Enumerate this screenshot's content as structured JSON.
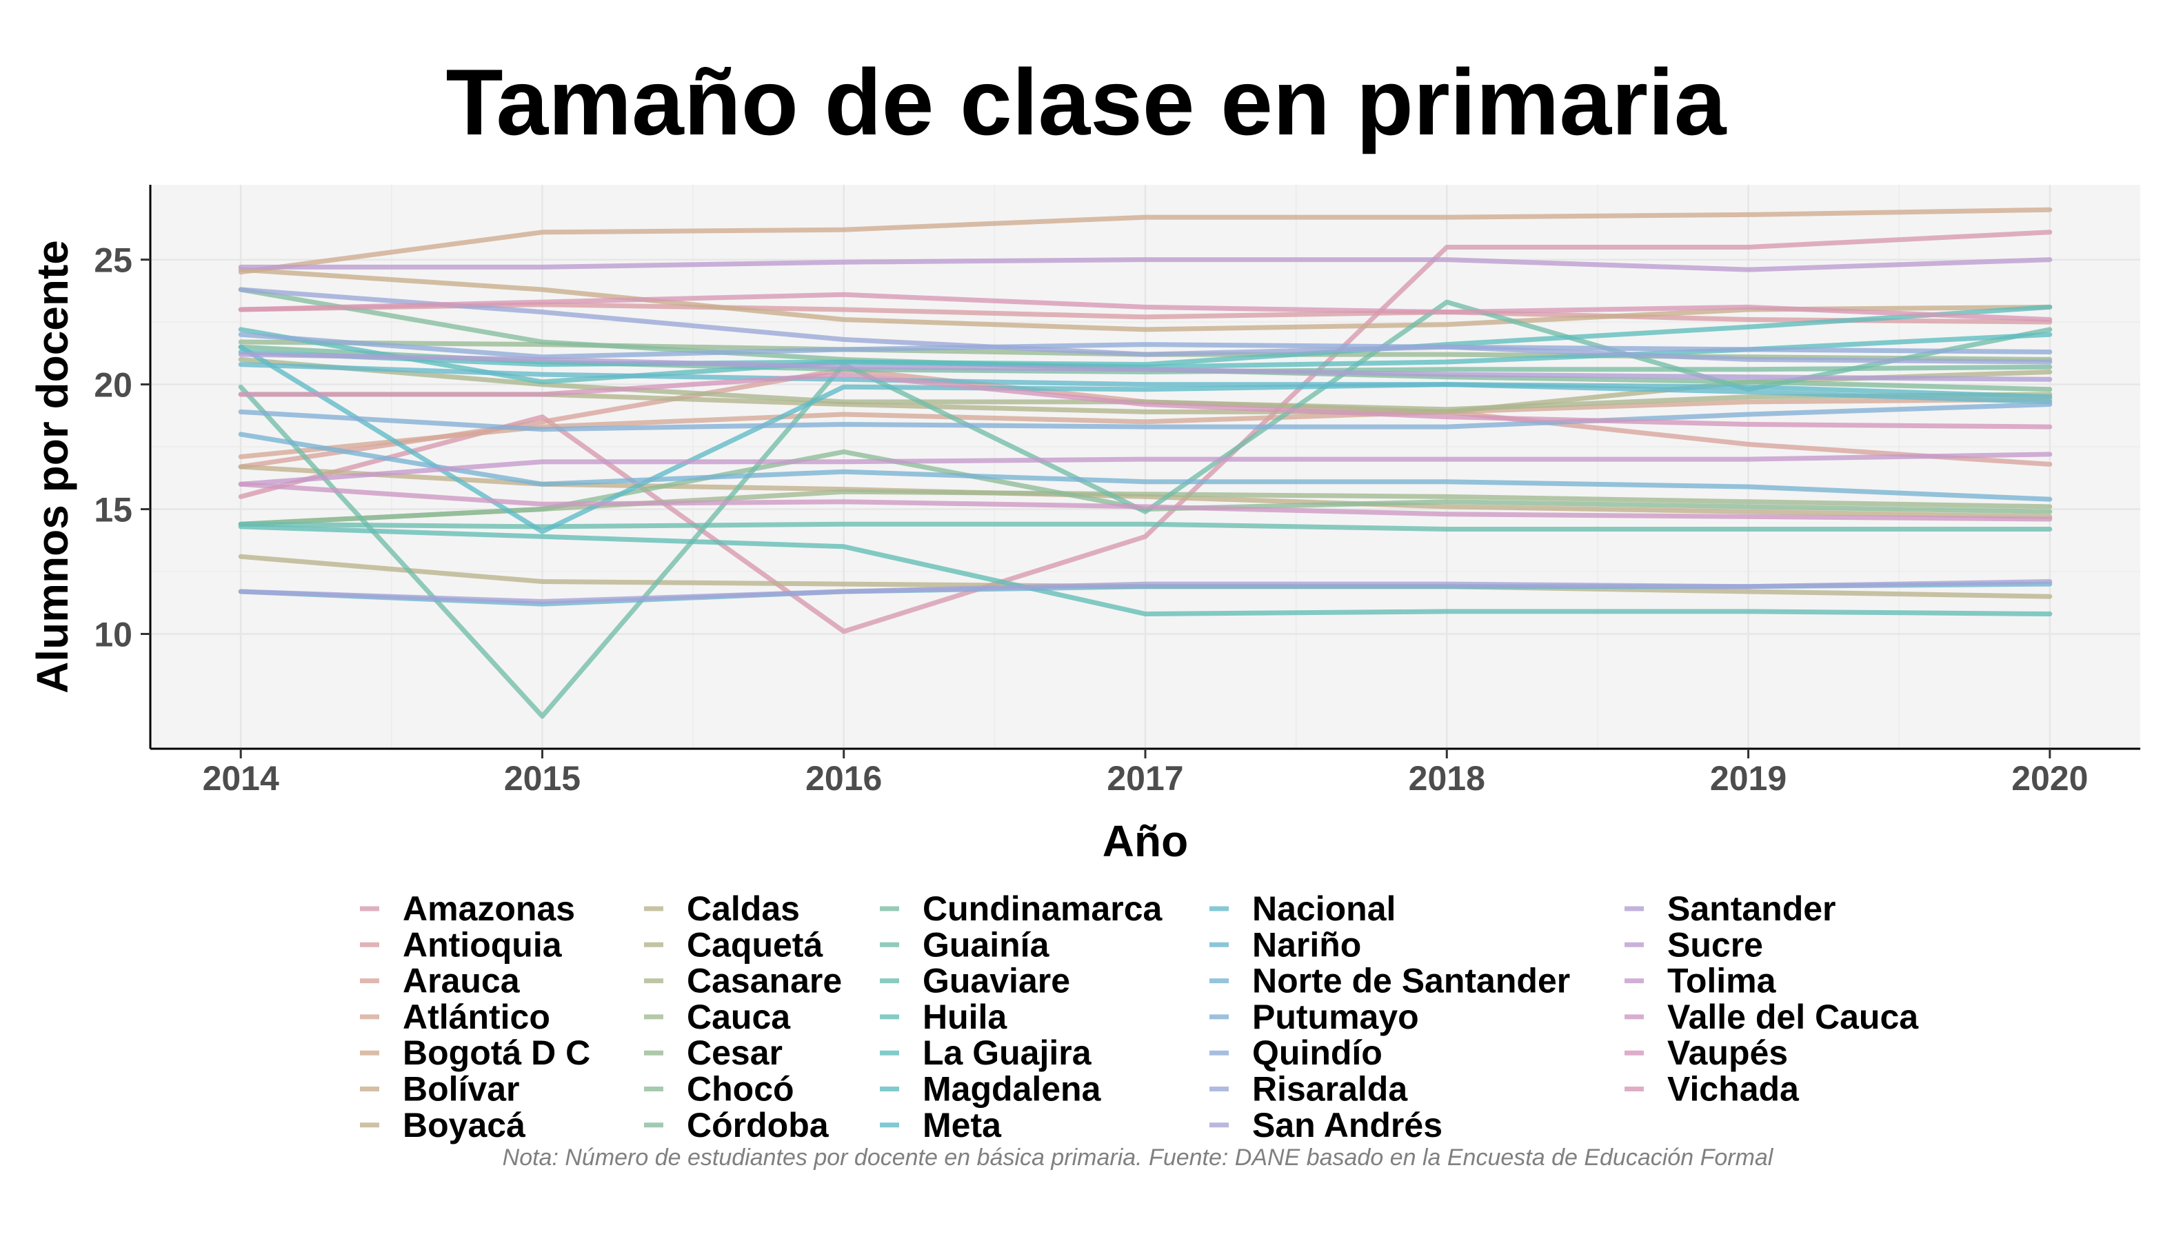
{
  "chart_data": {
    "type": "line",
    "title": "Tamaño de clase en primaria",
    "xlabel": "Año",
    "ylabel": "Alumnos por docente",
    "note": "Nota: Número de estudiantes por docente en básica primaria. Fuente: DANE basado en la Encuesta de Educación Formal",
    "x": [
      2014,
      2015,
      2016,
      2017,
      2018,
      2019,
      2020
    ],
    "xticks": [
      "2014",
      "2015",
      "2016",
      "2017",
      "2018",
      "2019",
      "2020"
    ],
    "yticks": [
      10,
      15,
      20,
      25
    ],
    "xlim": [
      2013.7,
      2020.3
    ],
    "ylim": [
      5.4,
      28.0
    ],
    "grid": true,
    "legend_position": "bottom",
    "series": [
      {
        "name": "Amazonas",
        "color": "#d798ad",
        "values": [
          15.5,
          18.7,
          10.1,
          13.9,
          25.5,
          25.5,
          26.1
        ]
      },
      {
        "name": "Antioquia",
        "color": "#d99da4",
        "values": [
          23.0,
          23.2,
          23.0,
          22.7,
          22.9,
          22.6,
          22.5
        ]
      },
      {
        "name": "Arauca",
        "color": "#d8a39c",
        "values": [
          16.7,
          18.5,
          20.6,
          19.3,
          18.9,
          17.6,
          16.8
        ]
      },
      {
        "name": "Atlántico",
        "color": "#d5a896",
        "values": [
          17.1,
          18.3,
          18.8,
          18.5,
          18.9,
          19.3,
          19.4
        ]
      },
      {
        "name": "Bogotá D C",
        "color": "#cfaa8e",
        "values": [
          24.5,
          26.1,
          26.2,
          26.7,
          26.7,
          26.8,
          27.0
        ]
      },
      {
        "name": "Bolívar",
        "color": "#c8ad8b",
        "values": [
          24.6,
          23.8,
          22.6,
          22.2,
          22.4,
          23.0,
          23.1
        ]
      },
      {
        "name": "Boyacá",
        "color": "#c0b08b",
        "values": [
          16.7,
          16.0,
          15.8,
          15.5,
          15.1,
          14.9,
          14.7
        ]
      },
      {
        "name": "Caldas",
        "color": "#b9b28a",
        "values": [
          13.1,
          12.1,
          12.0,
          11.9,
          11.9,
          11.7,
          11.5
        ]
      },
      {
        "name": "Caquetá",
        "color": "#b2b48b",
        "values": [
          19.6,
          19.6,
          19.2,
          18.9,
          18.9,
          20.1,
          20.5
        ]
      },
      {
        "name": "Casanare",
        "color": "#a9b68d",
        "values": [
          21.0,
          20.0,
          19.3,
          19.3,
          19.0,
          19.5,
          19.6
        ]
      },
      {
        "name": "Cauca",
        "color": "#a0b88f",
        "values": [
          14.4,
          15.0,
          15.7,
          15.6,
          15.5,
          15.3,
          15.1
        ]
      },
      {
        "name": "Cesar",
        "color": "#97b992",
        "values": [
          21.7,
          21.6,
          21.4,
          21.2,
          21.2,
          21.1,
          21.0
        ]
      },
      {
        "name": "Chocó",
        "color": "#8dbb97",
        "values": [
          14.4,
          15.0,
          17.3,
          15.0,
          15.3,
          15.1,
          14.9
        ]
      },
      {
        "name": "Córdoba",
        "color": "#84bc9c",
        "values": [
          23.8,
          21.7,
          21.0,
          20.6,
          20.3,
          20.1,
          19.8
        ]
      },
      {
        "name": "Cundinamarca",
        "color": "#7bbda2",
        "values": [
          21.5,
          20.9,
          20.6,
          20.5,
          20.6,
          20.6,
          20.7
        ]
      },
      {
        "name": "Guainía",
        "color": "#72bda8",
        "values": [
          19.9,
          6.7,
          20.8,
          14.9,
          23.3,
          19.8,
          22.2
        ]
      },
      {
        "name": "Guaviare",
        "color": "#69bdae",
        "values": [
          14.4,
          14.3,
          14.4,
          14.4,
          14.2,
          14.2,
          14.2
        ]
      },
      {
        "name": "Huila",
        "color": "#62bdb5",
        "values": [
          14.3,
          13.9,
          13.5,
          10.8,
          10.9,
          10.9,
          10.8
        ]
      },
      {
        "name": "La Guajira",
        "color": "#5ebcbb",
        "values": [
          22.2,
          20.1,
          20.9,
          20.8,
          21.6,
          22.3,
          23.1
        ]
      },
      {
        "name": "Magdalena",
        "color": "#5cbcc0",
        "values": [
          21.3,
          20.8,
          20.9,
          20.7,
          20.9,
          21.4,
          22.0
        ]
      },
      {
        "name": "Meta",
        "color": "#5dbac6",
        "values": [
          21.5,
          14.1,
          19.9,
          19.8,
          20.0,
          19.9,
          19.5
        ]
      },
      {
        "name": "Nacional",
        "color": "#64b8cb",
        "values": [
          20.8,
          20.4,
          20.2,
          20.0,
          20.0,
          19.7,
          19.3
        ]
      },
      {
        "name": "Nariño",
        "color": "#6cb5cf",
        "values": [
          11.7,
          11.2,
          11.7,
          11.9,
          11.9,
          11.9,
          12.0
        ]
      },
      {
        "name": "Norte de Santander",
        "color": "#77b2d2",
        "values": [
          18.0,
          16.0,
          16.5,
          16.1,
          16.1,
          15.9,
          15.4
        ]
      },
      {
        "name": "Putumayo",
        "color": "#82aed5",
        "values": [
          18.9,
          18.2,
          18.4,
          18.3,
          18.3,
          18.8,
          19.2
        ]
      },
      {
        "name": "Quindío",
        "color": "#8eaad7",
        "values": [
          22.0,
          21.1,
          21.4,
          21.6,
          21.5,
          21.4,
          21.3
        ]
      },
      {
        "name": "Risaralda",
        "color": "#9aa6d7",
        "values": [
          23.8,
          22.9,
          21.8,
          21.2,
          21.5,
          21.0,
          20.9
        ]
      },
      {
        "name": "San Andrés",
        "color": "#a5a2d6",
        "values": [
          11.7,
          11.3,
          11.7,
          12.0,
          12.0,
          11.9,
          12.1
        ]
      },
      {
        "name": "Santander",
        "color": "#b09ed3",
        "values": [
          21.2,
          21.0,
          20.7,
          20.6,
          20.4,
          20.3,
          20.2
        ]
      },
      {
        "name": "Sucre",
        "color": "#bb9bcf",
        "values": [
          24.7,
          24.7,
          24.9,
          25.0,
          25.0,
          24.6,
          25.0
        ]
      },
      {
        "name": "Tolima",
        "color": "#c499ca",
        "values": [
          16.0,
          16.9,
          16.9,
          17.0,
          17.0,
          17.0,
          17.2
        ]
      },
      {
        "name": "Valle del Cauca",
        "color": "#cd97c3",
        "values": [
          16.0,
          15.2,
          15.3,
          15.1,
          14.8,
          14.7,
          14.6
        ]
      },
      {
        "name": "Vaupés",
        "color": "#d396bb",
        "values": [
          19.6,
          19.6,
          20.4,
          19.2,
          18.7,
          18.4,
          18.3
        ]
      },
      {
        "name": "Vichada",
        "color": "#d797b4",
        "values": [
          23.0,
          23.3,
          23.6,
          23.1,
          22.9,
          23.1,
          22.6
        ]
      }
    ]
  }
}
